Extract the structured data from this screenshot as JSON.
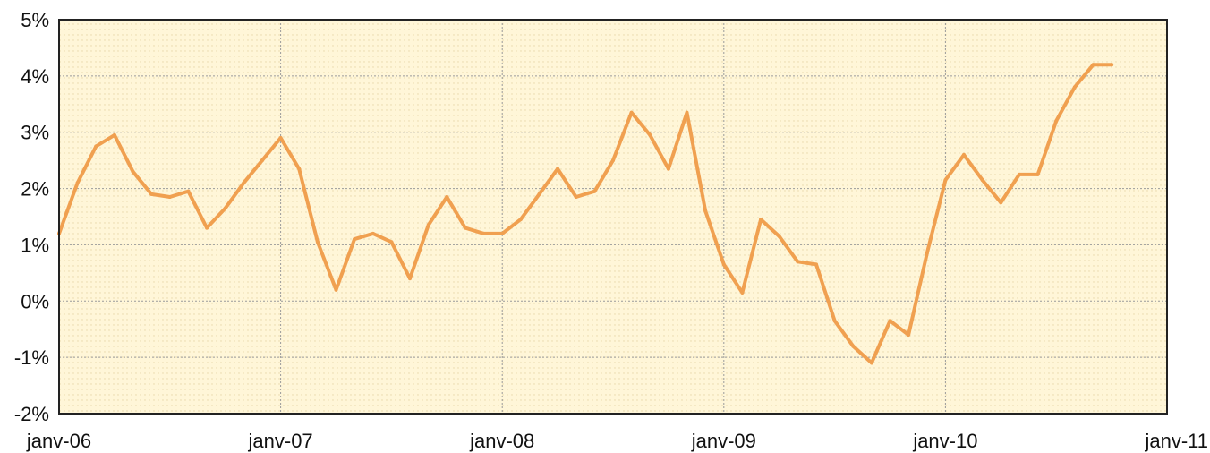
{
  "chart_data": {
    "type": "line",
    "title": "",
    "xlabel": "",
    "ylabel": "",
    "ylim": [
      -2,
      5
    ],
    "xlim": [
      "2006-01",
      "2011-01"
    ],
    "grid": true,
    "legend": "none",
    "y_ticks": [
      "-2%",
      "-1%",
      "0%",
      "1%",
      "2%",
      "3%",
      "4%",
      "5%"
    ],
    "x_ticks": [
      "janv-06",
      "janv-07",
      "janv-08",
      "janv-09",
      "janv-10",
      "janv-11"
    ],
    "colors": {
      "line": "#F0A050",
      "background": "#FFF6D8",
      "grid": "#9A9A9A",
      "axis": "#222222"
    },
    "series": [
      {
        "x": [
          "2006-01",
          "2006-02",
          "2006-03",
          "2006-04",
          "2006-05",
          "2006-06",
          "2006-07",
          "2006-08",
          "2006-09",
          "2006-10",
          "2006-11",
          "2006-12",
          "2007-01",
          "2007-02",
          "2007-03",
          "2007-04",
          "2007-05",
          "2007-06",
          "2007-07",
          "2007-08",
          "2007-09",
          "2007-10",
          "2007-11",
          "2007-12",
          "2008-01",
          "2008-02",
          "2008-03",
          "2008-04",
          "2008-05",
          "2008-06",
          "2008-07",
          "2008-08",
          "2008-09",
          "2008-10",
          "2008-11",
          "2008-12",
          "2009-01",
          "2009-02",
          "2009-03",
          "2009-04",
          "2009-05",
          "2009-06",
          "2009-07",
          "2009-08",
          "2009-09",
          "2009-10",
          "2009-11",
          "2009-12",
          "2010-01",
          "2010-02",
          "2010-03",
          "2010-04",
          "2010-05",
          "2010-06",
          "2010-07",
          "2010-08",
          "2010-09",
          "2010-10"
        ],
        "values": [
          1.2,
          2.1,
          2.75,
          2.95,
          2.3,
          1.9,
          1.85,
          1.95,
          1.3,
          1.65,
          2.1,
          2.5,
          2.9,
          2.35,
          1.05,
          0.2,
          1.1,
          1.2,
          1.05,
          0.4,
          1.35,
          1.85,
          1.3,
          1.2,
          1.2,
          1.45,
          1.9,
          2.35,
          1.85,
          1.95,
          2.5,
          3.35,
          2.95,
          2.35,
          3.35,
          1.6,
          0.65,
          0.15,
          1.45,
          1.15,
          0.7,
          0.65,
          -0.35,
          -0.8,
          -1.1,
          -0.35,
          -0.6,
          0.85,
          2.15,
          2.6,
          2.15,
          1.75,
          2.25,
          2.25,
          3.2,
          3.8,
          4.2,
          4.2
        ]
      }
    ]
  }
}
